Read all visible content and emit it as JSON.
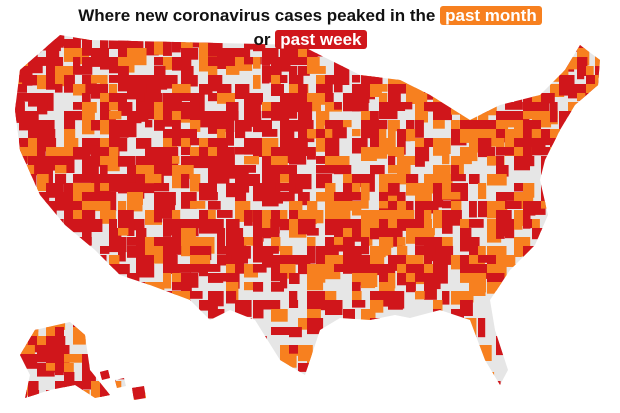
{
  "title": {
    "line_1": "Where new coronavirus cases peaked in the",
    "highlight_1": "past month",
    "line_2": "or",
    "highlight_2": "past week"
  },
  "categories": [
    {
      "label": "past month",
      "color": "#f7801f"
    },
    {
      "label": "past week",
      "color": "#d0161b"
    }
  ],
  "land_color": "#e6e6e6"
}
